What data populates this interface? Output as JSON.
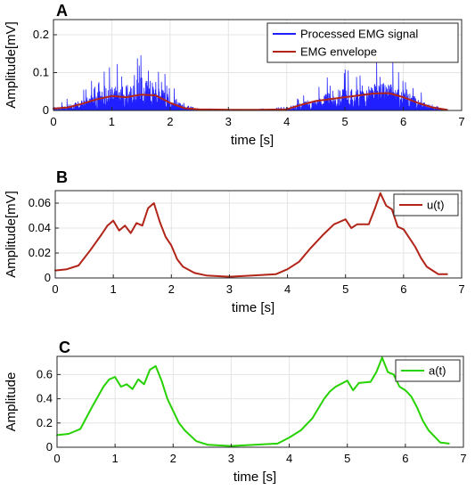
{
  "chart_data": [
    {
      "panel": "A",
      "type": "line",
      "xlabel": "time [s]",
      "ylabel": "Amplitude[mV]",
      "xlim": [
        0,
        7
      ],
      "ylim": [
        0,
        0.24
      ],
      "xticks": [
        "0",
        "1",
        "2",
        "3",
        "4",
        "5",
        "6",
        "7"
      ],
      "yticks": [
        "0",
        "0.1",
        "0.2"
      ],
      "ytick_values": [
        0,
        0.1,
        0.2
      ],
      "grid": true,
      "legend_position": "top-right",
      "series": [
        {
          "name": "Processed EMG signal",
          "color": "#1f1fff",
          "style": "noisy",
          "x": [
            0,
            0.25,
            0.5,
            0.75,
            1.0,
            1.25,
            1.5,
            1.75,
            2.0,
            2.25,
            2.5,
            3.0,
            3.5,
            4.0,
            4.25,
            4.5,
            4.75,
            5.0,
            5.25,
            5.5,
            5.75,
            6.0,
            6.25,
            6.5,
            6.75
          ],
          "values": [
            0.01,
            0.03,
            0.05,
            0.09,
            0.12,
            0.12,
            0.16,
            0.15,
            0.07,
            0.02,
            0.005,
            0.004,
            0.004,
            0.01,
            0.04,
            0.06,
            0.09,
            0.11,
            0.1,
            0.13,
            0.13,
            0.1,
            0.06,
            0.02,
            0.005
          ]
        },
        {
          "name": "EMG envelope",
          "color": "#b22418",
          "x": [
            0,
            0.25,
            0.5,
            0.75,
            1.0,
            1.25,
            1.5,
            1.75,
            2.0,
            2.25,
            2.5,
            3.0,
            3.5,
            4.0,
            4.25,
            4.5,
            4.75,
            5.0,
            5.25,
            5.5,
            5.75,
            6.0,
            6.25,
            6.5,
            6.75
          ],
          "values": [
            0.005,
            0.008,
            0.018,
            0.03,
            0.038,
            0.035,
            0.042,
            0.04,
            0.02,
            0.006,
            0.003,
            0.002,
            0.002,
            0.003,
            0.015,
            0.025,
            0.03,
            0.035,
            0.04,
            0.045,
            0.046,
            0.035,
            0.02,
            0.008,
            0.002
          ]
        }
      ]
    },
    {
      "panel": "B",
      "type": "line",
      "xlabel": "time [s]",
      "ylabel": "Amplitude[mV]",
      "xlim": [
        0,
        7
      ],
      "ylim": [
        0,
        0.07
      ],
      "xticks": [
        "0",
        "1",
        "2",
        "3",
        "4",
        "5",
        "6",
        "7"
      ],
      "yticks": [
        "0",
        "0.02",
        "0.04",
        "0.06"
      ],
      "ytick_values": [
        0,
        0.02,
        0.04,
        0.06
      ],
      "grid": true,
      "legend_position": "top-right",
      "series": [
        {
          "name": "u(t)",
          "color": "#b22418",
          "x": [
            0,
            0.2,
            0.4,
            0.6,
            0.8,
            0.9,
            1.0,
            1.1,
            1.2,
            1.3,
            1.4,
            1.5,
            1.6,
            1.7,
            1.8,
            1.9,
            2.0,
            2.1,
            2.2,
            2.4,
            2.6,
            3.0,
            3.4,
            3.8,
            4.0,
            4.2,
            4.4,
            4.6,
            4.8,
            5.0,
            5.1,
            5.2,
            5.4,
            5.5,
            5.6,
            5.7,
            5.8,
            5.9,
            6.0,
            6.1,
            6.2,
            6.3,
            6.4,
            6.5,
            6.6,
            6.75
          ],
          "values": [
            0.006,
            0.007,
            0.01,
            0.022,
            0.035,
            0.042,
            0.046,
            0.038,
            0.042,
            0.036,
            0.044,
            0.042,
            0.056,
            0.06,
            0.045,
            0.033,
            0.026,
            0.015,
            0.009,
            0.004,
            0.002,
            0.001,
            0.002,
            0.003,
            0.007,
            0.013,
            0.024,
            0.034,
            0.043,
            0.047,
            0.04,
            0.043,
            0.043,
            0.055,
            0.068,
            0.058,
            0.055,
            0.041,
            0.039,
            0.032,
            0.025,
            0.016,
            0.009,
            0.006,
            0.003,
            0.003
          ]
        }
      ]
    },
    {
      "panel": "C",
      "type": "line",
      "xlabel": "time [s]",
      "ylabel": "Amplitude",
      "xlim": [
        0,
        7
      ],
      "ylim": [
        0,
        0.75
      ],
      "xticks": [
        "0",
        "1",
        "2",
        "3",
        "4",
        "5",
        "6",
        "7"
      ],
      "yticks": [
        "0",
        "0.2",
        "0.4",
        "0.6"
      ],
      "ytick_values": [
        0,
        0.2,
        0.4,
        0.6
      ],
      "grid": true,
      "legend_position": "top-right",
      "series": [
        {
          "name": "a(t)",
          "color": "#26d200",
          "x": [
            0,
            0.2,
            0.4,
            0.6,
            0.8,
            0.9,
            1.0,
            1.1,
            1.2,
            1.3,
            1.4,
            1.5,
            1.6,
            1.7,
            1.8,
            1.9,
            2.0,
            2.1,
            2.2,
            2.4,
            2.6,
            3.0,
            3.4,
            3.8,
            4.0,
            4.2,
            4.4,
            4.6,
            4.7,
            4.8,
            5.0,
            5.1,
            5.2,
            5.4,
            5.5,
            5.6,
            5.7,
            5.8,
            5.9,
            6.0,
            6.1,
            6.2,
            6.3,
            6.4,
            6.5,
            6.6,
            6.75
          ],
          "values": [
            0.1,
            0.11,
            0.15,
            0.33,
            0.5,
            0.56,
            0.58,
            0.5,
            0.52,
            0.48,
            0.56,
            0.52,
            0.64,
            0.67,
            0.55,
            0.4,
            0.3,
            0.2,
            0.14,
            0.05,
            0.02,
            0.01,
            0.02,
            0.03,
            0.08,
            0.14,
            0.24,
            0.4,
            0.46,
            0.5,
            0.55,
            0.47,
            0.53,
            0.54,
            0.62,
            0.74,
            0.62,
            0.6,
            0.5,
            0.47,
            0.42,
            0.33,
            0.22,
            0.14,
            0.09,
            0.04,
            0.03
          ]
        }
      ]
    }
  ]
}
